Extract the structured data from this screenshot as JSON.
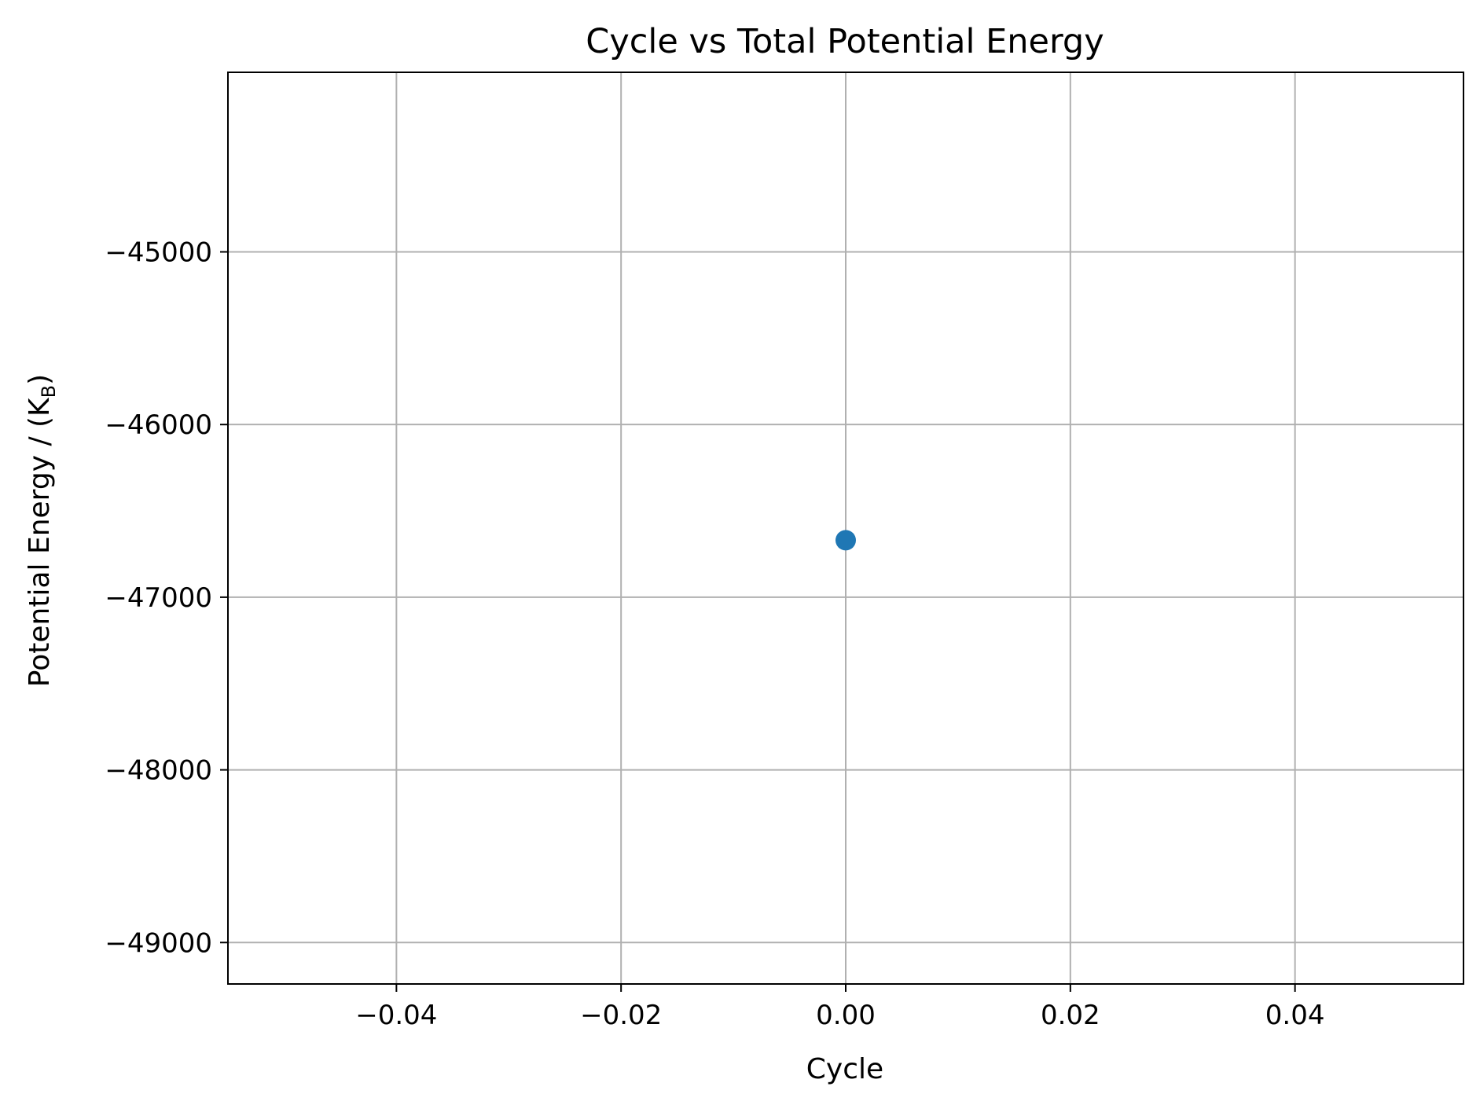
{
  "chart_data": {
    "type": "scatter",
    "title": "Cycle vs Total Potential Energy",
    "xlabel": "Cycle",
    "ylabel_main": "Potential Energy / (K",
    "ylabel_sub": "B",
    "ylabel_close": ")",
    "xlim": [
      -0.055,
      0.055
    ],
    "ylim": [
      -49240,
      -43960
    ],
    "grid": true,
    "x_ticks": [
      -0.04,
      -0.02,
      0.0,
      0.02,
      0.04
    ],
    "x_tick_labels": [
      "−0.04",
      "−0.02",
      "0.00",
      "0.02",
      "0.04"
    ],
    "y_ticks": [
      -49000,
      -48000,
      -47000,
      -46000,
      -45000
    ],
    "y_tick_labels": [
      "−49000",
      "−48000",
      "−47000",
      "−46000",
      "−45000"
    ],
    "series": [
      {
        "x": [
          0
        ],
        "y": [
          -46670
        ],
        "color": "#1f77b4"
      }
    ]
  }
}
